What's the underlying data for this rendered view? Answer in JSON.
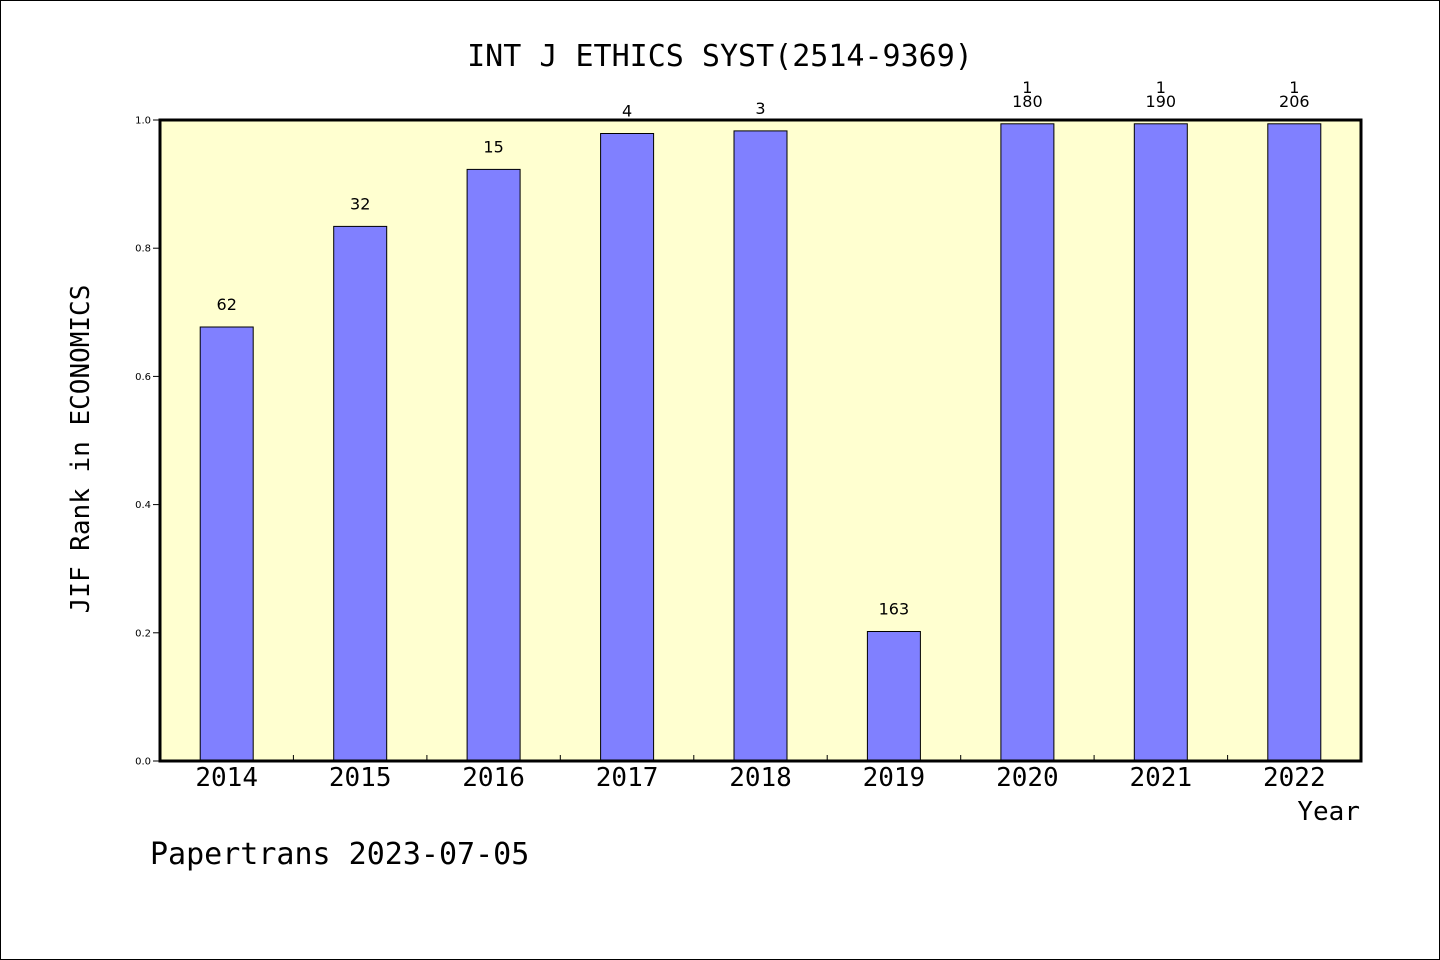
{
  "chart_data": {
    "type": "bar",
    "title": "INT J ETHICS SYST(2514-9369)",
    "xlabel": "Year",
    "ylabel": "JIF Rank in ECONOMICS",
    "ylim": [
      0,
      1.0
    ],
    "yticks": [
      "0.0",
      "0.2",
      "0.4",
      "0.6",
      "0.8",
      "1.0"
    ],
    "categories": [
      "2014",
      "2015",
      "2016",
      "2017",
      "2018",
      "2019",
      "2020",
      "2021",
      "2022"
    ],
    "values": [
      0.677,
      0.834,
      0.923,
      0.979,
      0.983,
      0.202,
      0.994,
      0.994,
      0.994
    ],
    "labels": [
      [
        "62"
      ],
      [
        "32"
      ],
      [
        "15"
      ],
      [
        "4"
      ],
      [
        "3"
      ],
      [
        "163"
      ],
      [
        "1",
        "180"
      ],
      [
        "1",
        "190"
      ],
      [
        "1",
        "206"
      ]
    ],
    "colors": {
      "bar": "#8080ff",
      "plot_bg": "#ffffd0",
      "axis": "#000000"
    },
    "grid": false
  },
  "footer": "Papertrans 2023-07-05"
}
